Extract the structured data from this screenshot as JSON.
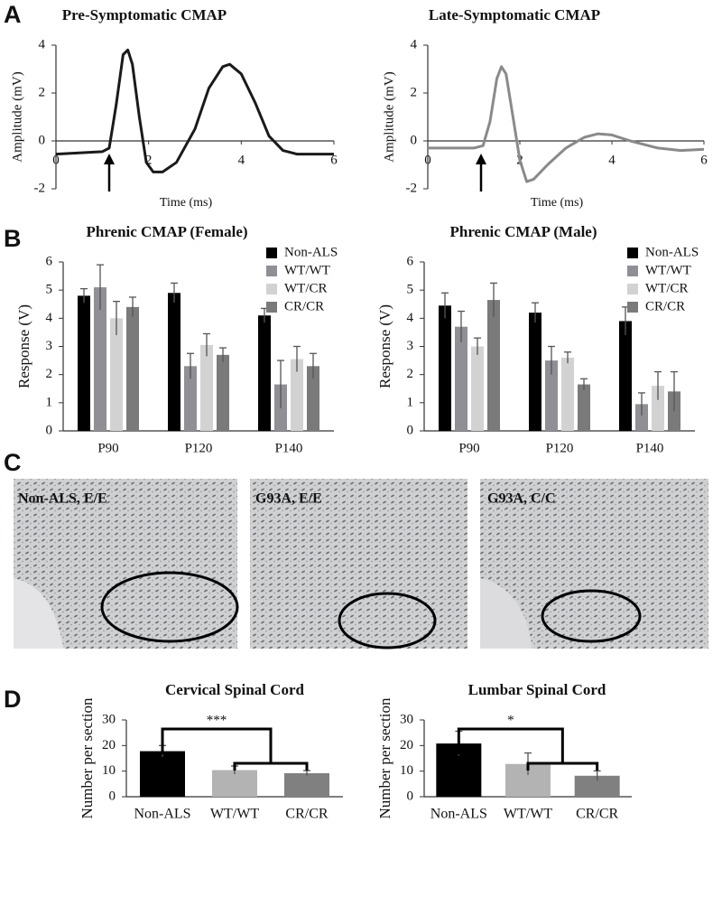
{
  "panel_labels": [
    "A",
    "B",
    "C",
    "D"
  ],
  "images": [
    {
      "label": "Non-ALS, E/E"
    },
    {
      "label": "G93A, E/E"
    },
    {
      "label": "G93A, C/C"
    }
  ],
  "chart_data": [
    {
      "type": "line",
      "title": "Pre-Symptomatic CMAP",
      "xlabel": "Time  (ms)",
      "ylabel": "Amplitude  (mV)",
      "color": "#1a1a1a",
      "x": [
        0,
        0.5,
        1.0,
        1.15,
        1.3,
        1.45,
        1.55,
        1.65,
        1.8,
        1.95,
        2.1,
        2.3,
        2.6,
        3.0,
        3.3,
        3.6,
        3.75,
        4.0,
        4.3,
        4.6,
        4.9,
        5.2,
        5.6,
        6.0
      ],
      "values": [
        -0.55,
        -0.5,
        -0.45,
        -0.3,
        1.5,
        3.6,
        3.8,
        3.2,
        1.0,
        -0.9,
        -1.3,
        -1.3,
        -0.9,
        0.5,
        2.2,
        3.1,
        3.2,
        2.8,
        1.6,
        0.2,
        -0.4,
        -0.55,
        -0.55,
        -0.55
      ],
      "xlim": [
        0,
        6
      ],
      "xticks": [
        0,
        2,
        4,
        6
      ],
      "ylim": [
        -2,
        4
      ],
      "yticks": [
        -2,
        0,
        2,
        4
      ]
    },
    {
      "type": "line",
      "title": "Late-Symptomatic CMAP",
      "xlabel": "Time  (ms)",
      "ylabel": "Amplitude  (mV)",
      "color": "#8a8a8a",
      "x": [
        0,
        0.5,
        1.0,
        1.2,
        1.35,
        1.5,
        1.6,
        1.7,
        1.85,
        2.0,
        2.15,
        2.3,
        2.6,
        3.0,
        3.4,
        3.7,
        4.0,
        4.4,
        5.0,
        5.5,
        6.0
      ],
      "values": [
        -0.3,
        -0.3,
        -0.3,
        -0.2,
        0.8,
        2.6,
        3.1,
        2.8,
        1.0,
        -0.8,
        -1.7,
        -1.6,
        -1.0,
        -0.3,
        0.15,
        0.3,
        0.25,
        0.0,
        -0.3,
        -0.4,
        -0.35
      ],
      "xlim": [
        0,
        6
      ],
      "xticks": [
        0,
        2,
        4,
        6
      ],
      "ylim": [
        -2,
        4
      ],
      "yticks": [
        -2,
        0,
        2,
        4
      ]
    },
    {
      "type": "bar",
      "title": "Phrenic CMAP (Female)",
      "ylabel": "Response (V)",
      "categories": [
        "P90",
        "P120",
        "P140"
      ],
      "series": [
        {
          "name": "Non-ALS",
          "color": "#000000",
          "values": [
            4.8,
            4.9,
            4.1
          ],
          "errors": [
            0.25,
            0.35,
            0.25
          ]
        },
        {
          "name": "WT/WT",
          "color": "#8f8f95",
          "values": [
            5.1,
            2.3,
            1.65
          ],
          "errors": [
            0.8,
            0.45,
            0.85
          ]
        },
        {
          "name": "WT/CR",
          "color": "#d2d2d2",
          "values": [
            4.0,
            3.05,
            2.55
          ],
          "errors": [
            0.6,
            0.4,
            0.45
          ]
        },
        {
          "name": "CR/CR",
          "color": "#7a7a7a",
          "values": [
            4.4,
            2.7,
            2.3
          ],
          "errors": [
            0.35,
            0.25,
            0.45
          ]
        }
      ],
      "ylim": [
        0,
        6
      ],
      "yticks": [
        0,
        1,
        2,
        3,
        4,
        5,
        6
      ],
      "legend": "top-right"
    },
    {
      "type": "bar",
      "title": "Phrenic CMAP (Male)",
      "ylabel": "Response (V)",
      "categories": [
        "P90",
        "P120",
        "P140"
      ],
      "series": [
        {
          "name": "Non-ALS",
          "color": "#000000",
          "values": [
            4.45,
            4.2,
            3.9
          ],
          "errors": [
            0.45,
            0.35,
            0.5
          ]
        },
        {
          "name": "WT/WT",
          "color": "#8f8f95",
          "values": [
            3.7,
            2.5,
            0.95
          ],
          "errors": [
            0.55,
            0.5,
            0.4
          ]
        },
        {
          "name": "WT/CR",
          "color": "#d2d2d2",
          "values": [
            3.0,
            2.6,
            1.6
          ],
          "errors": [
            0.3,
            0.2,
            0.5
          ]
        },
        {
          "name": "CR/CR",
          "color": "#7a7a7a",
          "values": [
            4.65,
            1.65,
            1.4
          ],
          "errors": [
            0.6,
            0.2,
            0.7
          ]
        }
      ],
      "ylim": [
        0,
        6
      ],
      "yticks": [
        0,
        1,
        2,
        3,
        4,
        5,
        6
      ],
      "legend": "top-right"
    },
    {
      "type": "bar",
      "title": "Cervical Spinal  Cord",
      "ylabel": "Number per section",
      "categories": [
        "Non-ALS",
        "WT/WT",
        "CR/CR"
      ],
      "values": [
        17.8,
        10.4,
        9.2
      ],
      "errors": [
        2.2,
        1.6,
        1.0
      ],
      "colors": [
        "#000000",
        "#b3b3b3",
        "#808080"
      ],
      "ylim": [
        0,
        30
      ],
      "yticks": [
        0,
        10,
        20,
        30
      ],
      "annotation": "***"
    },
    {
      "type": "bar",
      "title": "Lumbar Spinal  Cord",
      "ylabel": "Number per section",
      "categories": [
        "Non-ALS",
        "WT/WT",
        "CR/CR"
      ],
      "values": [
        20.8,
        12.8,
        8.2
      ],
      "errors": [
        4.8,
        4.3,
        1.9
      ],
      "colors": [
        "#000000",
        "#b3b3b3",
        "#808080"
      ],
      "ylim": [
        0,
        30
      ],
      "yticks": [
        0,
        10,
        20,
        30
      ],
      "annotation": "*"
    }
  ]
}
